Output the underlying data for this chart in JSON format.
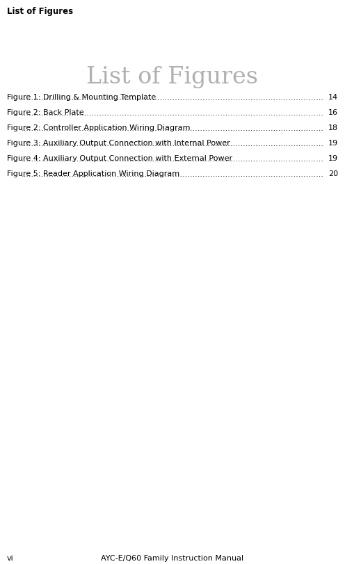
{
  "header_text": "List of Figures",
  "title_text": "List of Figures",
  "footer_left": "vi",
  "footer_right": "AYC-E/Q60 Family Instruction Manual",
  "entries": [
    {
      "label": "Figure 1: Drilling & Mounting Template",
      "page": "14"
    },
    {
      "label": "Figure 2: Back Plate",
      "page": "16"
    },
    {
      "label": "Figure 2: Controller Application Wiring Diagram",
      "page": "18"
    },
    {
      "label": "Figure 3: Auxiliary Output Connection with Internal Power",
      "page": "19"
    },
    {
      "label": "Figure 4: Auxiliary Output Connection with External Power",
      "page": "19"
    },
    {
      "label": "Figure 5: Reader Application Wiring Diagram",
      "page": "20"
    }
  ],
  "bg_color": "#ffffff",
  "header_fontsize": 8.5,
  "title_fontsize": 24,
  "entry_fontsize": 8.0,
  "footer_fontsize": 8.0,
  "header_color": "#000000",
  "title_color": "#b0b0b0",
  "entry_color": "#000000",
  "footer_color": "#000000",
  "dot_color": "#000000",
  "line_color": "#aaaaaa"
}
